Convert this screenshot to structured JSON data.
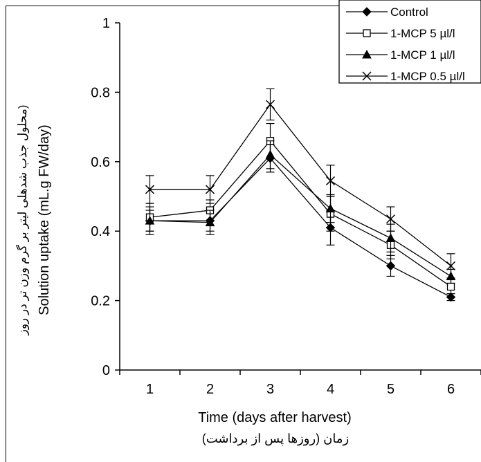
{
  "chart_data": {
    "type": "line",
    "x": [
      1,
      2,
      3,
      4,
      5,
      6
    ],
    "xlabel": "Time (days after harvest)",
    "xlabel_persian": "زمان (روزها پس از برداشت)",
    "ylabel": "Solution uptake (mL.g FW/day)",
    "ylabel_persian": "محلول جذب شدهلی لیتر بر گرم وزن تر در روز)",
    "xlim": [
      0.5,
      6.5
    ],
    "ylim": [
      0,
      1
    ],
    "x_ticks": [
      "1",
      "2",
      "3",
      "4",
      "5",
      "6"
    ],
    "y_ticks": [
      "0",
      "0.2",
      "0.4",
      "0.6",
      "0.8",
      "1"
    ],
    "y_tick_values": [
      0,
      0.2,
      0.4,
      0.6,
      0.8,
      1
    ],
    "grid": false,
    "legend_position": "top-right",
    "series": [
      {
        "name": "Control",
        "marker": "diamond",
        "values": [
          0.43,
          0.43,
          0.61,
          0.41,
          0.3,
          0.21
        ],
        "error": [
          0.03,
          0.03,
          0.04,
          0.05,
          0.03,
          0.01
        ]
      },
      {
        "name": "1-MCP 5 µl/l",
        "marker": "square",
        "values": [
          0.44,
          0.46,
          0.66,
          0.45,
          0.36,
          0.24
        ],
        "error": [
          0.04,
          0.03,
          0.05,
          0.05,
          0.04,
          0.02
        ]
      },
      {
        "name": "1-MCP 1 µl/l",
        "marker": "triangle",
        "values": [
          0.43,
          0.425,
          0.62,
          0.465,
          0.38,
          0.27
        ],
        "error": [
          0.04,
          0.035,
          0.04,
          0.04,
          0.04,
          0.02
        ]
      },
      {
        "name": "1-MCP 0.5 µl/l",
        "marker": "x",
        "values": [
          0.52,
          0.52,
          0.765,
          0.545,
          0.435,
          0.3
        ],
        "error": [
          0.04,
          0.04,
          0.045,
          0.045,
          0.035,
          0.035
        ]
      }
    ]
  }
}
